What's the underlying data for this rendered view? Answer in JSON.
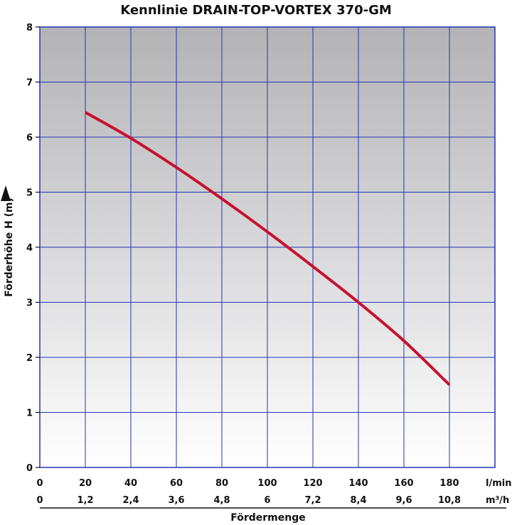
{
  "chart_data": {
    "type": "line",
    "title": "Kennlinie DRAIN-TOP-VORTEX 370-GM",
    "ylabel": "Förderhöhe H (m)",
    "xlabel": "Fördermenge",
    "x_unit_primary": "l/min",
    "x_unit_secondary": "m³/h",
    "xlim": [
      0,
      200
    ],
    "ylim": [
      0,
      8
    ],
    "x_ticks": [
      "0",
      "20",
      "40",
      "60",
      "80",
      "100",
      "120",
      "140",
      "160",
      "180"
    ],
    "x_ticks_secondary": [
      "0",
      "1,2",
      "2,4",
      "3,6",
      "4,8",
      "6",
      "7,2",
      "8,4",
      "9,6",
      "10,8"
    ],
    "y_ticks": [
      "0",
      "1",
      "2",
      "3",
      "4",
      "5",
      "6",
      "7",
      "8"
    ],
    "grid": true,
    "series": [
      {
        "x": [
          20,
          40,
          60,
          80,
          100,
          120,
          140,
          160,
          180
        ],
        "y": [
          6.45,
          5.98,
          5.45,
          4.88,
          4.28,
          3.65,
          3.0,
          2.3,
          1.5
        ],
        "color": "#c8102e"
      }
    ]
  }
}
